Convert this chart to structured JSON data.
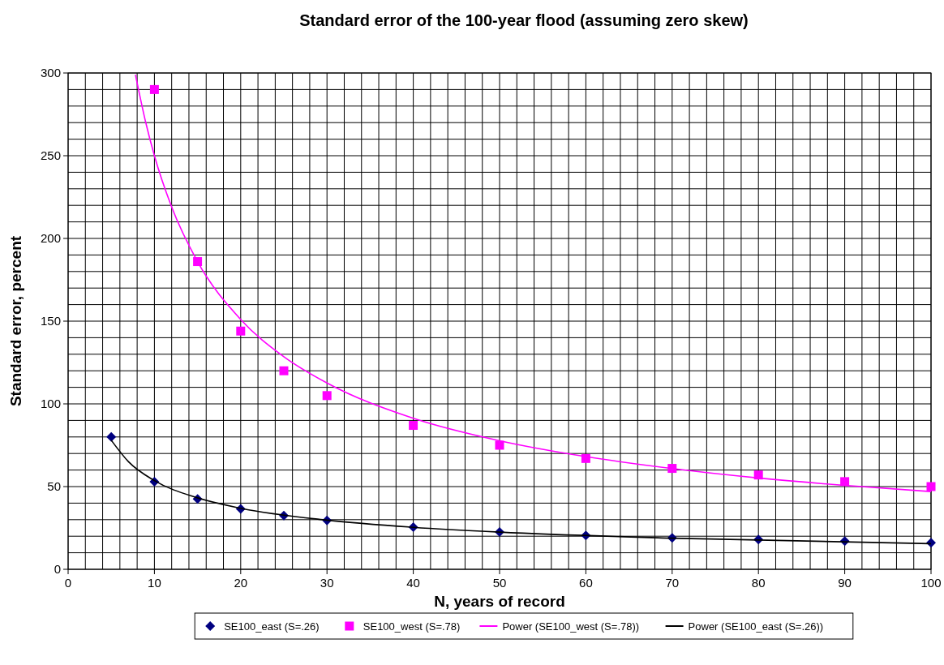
{
  "chart_data": {
    "type": "scatter",
    "title": "Standard error of the 100-year flood (assuming zero skew)",
    "xlabel": "N, years of record",
    "ylabel": "Standard error, percent",
    "xlim": [
      0,
      100
    ],
    "ylim": [
      0,
      300
    ],
    "xticks": [
      0,
      {
        "value": 2,
        "label": null
      },
      {
        "value": 4,
        "label": null
      },
      {
        "value": 6,
        "label": null
      },
      {
        "value": 8,
        "label": null
      },
      10,
      {
        "value": 12,
        "label": null
      },
      {
        "value": 14,
        "label": null
      },
      {
        "value": 16,
        "label": null
      },
      {
        "value": 18,
        "label": null
      },
      20,
      {
        "value": 22,
        "label": null
      },
      {
        "value": 24,
        "label": null
      },
      {
        "value": 26,
        "label": null
      },
      {
        "value": 28,
        "label": null
      },
      30,
      {
        "value": 32,
        "label": null
      },
      {
        "value": 34,
        "label": null
      },
      {
        "value": 36,
        "label": null
      },
      {
        "value": 38,
        "label": null
      },
      40,
      {
        "value": 42,
        "label": null
      },
      {
        "value": 44,
        "label": null
      },
      {
        "value": 46,
        "label": null
      },
      {
        "value": 48,
        "label": null
      },
      50,
      {
        "value": 52,
        "label": null
      },
      {
        "value": 54,
        "label": null
      },
      {
        "value": 56,
        "label": null
      },
      {
        "value": 58,
        "label": null
      },
      60,
      {
        "value": 62,
        "label": null
      },
      {
        "value": 64,
        "label": null
      },
      {
        "value": 66,
        "label": null
      },
      {
        "value": 68,
        "label": null
      },
      70,
      {
        "value": 72,
        "label": null
      },
      {
        "value": 74,
        "label": null
      },
      {
        "value": 76,
        "label": null
      },
      {
        "value": 78,
        "label": null
      },
      80,
      {
        "value": 82,
        "label": null
      },
      {
        "value": 84,
        "label": null
      },
      {
        "value": 86,
        "label": null
      },
      {
        "value": 88,
        "label": null
      },
      90,
      {
        "value": 92,
        "label": null
      },
      {
        "value": 94,
        "label": null
      },
      {
        "value": 96,
        "label": null
      },
      {
        "value": 98,
        "label": null
      },
      100
    ],
    "yticks": [
      0,
      {
        "value": 10,
        "label": null
      },
      {
        "value": 20,
        "label": null
      },
      {
        "value": 30,
        "label": null
      },
      {
        "value": 40,
        "label": null
      },
      50,
      {
        "value": 60,
        "label": null
      },
      {
        "value": 70,
        "label": null
      },
      {
        "value": 80,
        "label": null
      },
      {
        "value": 90,
        "label": null
      },
      100,
      {
        "value": 110,
        "label": null
      },
      {
        "value": 120,
        "label": null
      },
      {
        "value": 130,
        "label": null
      },
      {
        "value": 140,
        "label": null
      },
      150,
      {
        "value": 160,
        "label": null
      },
      {
        "value": 170,
        "label": null
      },
      {
        "value": 180,
        "label": null
      },
      {
        "value": 190,
        "label": null
      },
      200,
      {
        "value": 210,
        "label": null
      },
      {
        "value": 220,
        "label": null
      },
      {
        "value": 230,
        "label": null
      },
      {
        "value": 240,
        "label": null
      },
      250,
      {
        "value": 260,
        "label": null
      },
      {
        "value": 270,
        "label": null
      },
      {
        "value": 280,
        "label": null
      },
      {
        "value": 290,
        "label": null
      },
      300
    ],
    "grid": true,
    "legend": "bottom",
    "series": [
      {
        "name": "SE100_east (S=.26)",
        "type": "scatter",
        "marker": "diamond",
        "color": "#000080",
        "x": [
          5,
          10,
          15,
          20,
          25,
          30,
          40,
          50,
          60,
          70,
          80,
          90,
          100
        ],
        "values": [
          80,
          53,
          42.5,
          36.5,
          32.5,
          29.5,
          25.5,
          22.5,
          20.5,
          19,
          18,
          17,
          16
        ]
      },
      {
        "name": "SE100_west (S=.78)",
        "type": "scatter",
        "marker": "square",
        "color": "#ff00ff",
        "x": [
          10,
          15,
          20,
          25,
          30,
          40,
          50,
          60,
          70,
          80,
          90,
          100
        ],
        "values": [
          290,
          186,
          144,
          120,
          105,
          87,
          75,
          67,
          61,
          57,
          53,
          50
        ]
      },
      {
        "name": "Power (SE100_west (S=.78))",
        "type": "line",
        "marker": "none",
        "color": "#ff00ff",
        "x": [
          7.8,
          9,
          10,
          12,
          15,
          20,
          25,
          30,
          40,
          50,
          60,
          70,
          80,
          90,
          100
        ],
        "values": [
          299,
          270,
          250,
          219,
          186,
          151,
          128.5,
          112.6,
          91.3,
          77.7,
          68.1,
          60.9,
          55.2,
          50.7,
          47
        ]
      },
      {
        "name": "Power (SE100_east (S=.26))",
        "type": "line",
        "marker": "none",
        "color": "#000000",
        "x": [
          5,
          7,
          10,
          15,
          20,
          30,
          40,
          50,
          70,
          100
        ],
        "values": [
          78,
          65,
          53.6,
          43.2,
          36.9,
          29.7,
          25.4,
          22.5,
          18.8,
          15.5
        ]
      }
    ]
  }
}
